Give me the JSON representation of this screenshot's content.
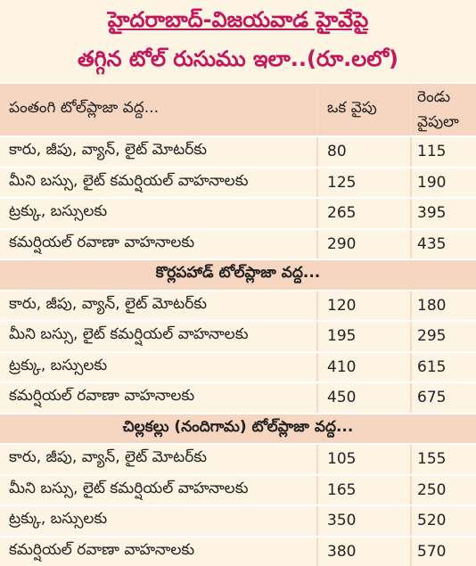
{
  "header": {
    "title": [
      "హైదరాబాద్-విజయవాడ హైవేపై",
      "తగ్గిన టోల్ రుసుము ఇలా..(రూ.లలో)"
    ]
  },
  "table": {
    "columns": [
      "ఒక వైపు",
      "రెండు వైపులా"
    ],
    "sections": [
      {
        "title": "పంతంగి టోల్‌ప్లాజా వద్ద...",
        "rows": [
          [
            "కారు, జీపు, వ్యాన్, లైట్ మోటర్‌కు",
            80,
            115
          ],
          [
            "మీని బస్సు, లైట్ కమర్షియల్ వాహనాలకు",
            125,
            190
          ],
          [
            "ట్రక్కు, బస్సులకు",
            265,
            395
          ],
          [
            "కమర్షియల్ రవాణా వాహనాలకు",
            290,
            435
          ]
        ]
      },
      {
        "title": "కొర్లపహాడ్ టోల్‌ప్లాజా వద్ద...",
        "rows": [
          [
            "కారు, జీపు, వ్యాన్, లైట్ మోటర్‌కు",
            120,
            180
          ],
          [
            "మీని బస్సు, లైట్ కమర్షియల్ వాహనాలకు",
            195,
            295
          ],
          [
            "ట్రక్కు, బస్సులకు",
            410,
            615
          ],
          [
            "కమర్షియల్ రవాణా వాహనాలకు",
            450,
            675
          ]
        ]
      },
      {
        "title": "చిల్లకల్లు (నందిగామ) టోల్‌ప్లాజా వద్ద...",
        "rows": [
          [
            "కారు, జీపు, వ్యాన్, లైట్ మోటర్‌కు",
            105,
            155
          ],
          [
            "మీని బస్సు, లైట్ కమర్షియల్ వాహనాలకు",
            165,
            250
          ],
          [
            "ట్రక్కు, బస్సులకు",
            350,
            520
          ],
          [
            "కమర్షియల్ రవాణా వాహనాలకు",
            380,
            570
          ]
        ]
      }
    ]
  }
}
